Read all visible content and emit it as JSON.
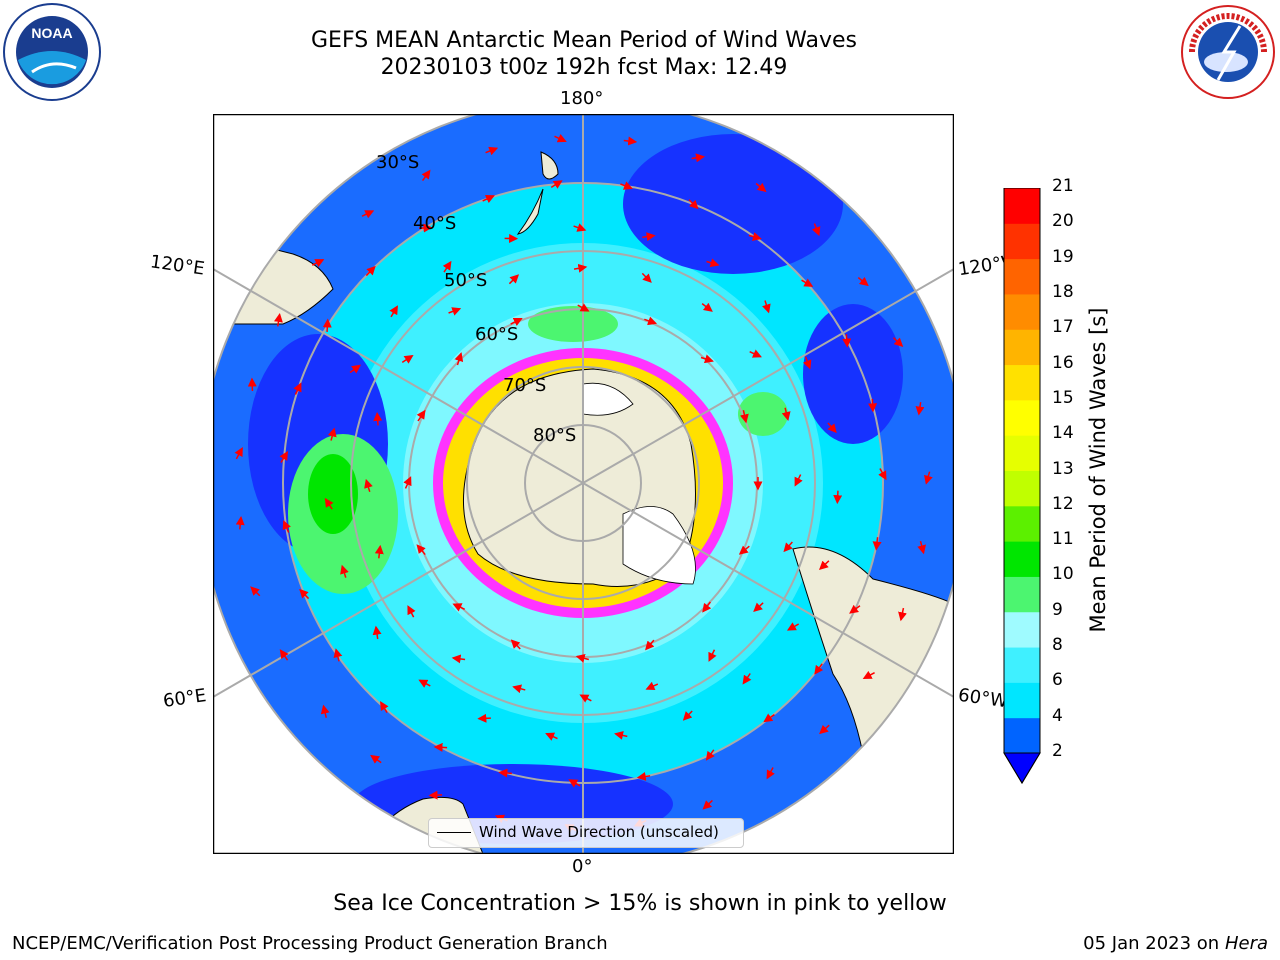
{
  "title_line1": "GEFS MEAN Antarctic Mean Period of Wind Waves",
  "title_line2": "20230103 t00z 192h fcst   Max: 12.49",
  "longitude_labels": {
    "top": "180°",
    "bottom": "0°",
    "upper_left": "120°E",
    "upper_right": "120°W",
    "lower_left": "60°E",
    "lower_right": "60°W"
  },
  "latitude_labels": [
    "30°S",
    "40°S",
    "50°S",
    "60°S",
    "70°S",
    "80°S"
  ],
  "legend": {
    "label": "Wind Wave Direction (unscaled)"
  },
  "colorbar": {
    "label": "Mean Period of Wind Waves [s]",
    "ticks": [
      "2",
      "4",
      "6",
      "8",
      "9",
      "10",
      "11",
      "12",
      "13",
      "14",
      "15",
      "16",
      "17",
      "18",
      "19",
      "20",
      "21"
    ],
    "colors": [
      "#0064ff",
      "#00e6ff",
      "#3ff0ff",
      "#9ffbff",
      "#4cf570",
      "#00e600",
      "#5cf000",
      "#c0ff00",
      "#e6ff00",
      "#ffff00",
      "#ffe100",
      "#ffb400",
      "#ff8c00",
      "#ff6400",
      "#ff3200",
      "#ff0000"
    ],
    "extend_color": "#0000ff"
  },
  "colors": {
    "land": "#eeecd8",
    "deep_blue": "#1632ff",
    "blue": "#1a6cff",
    "cyan": "#00e6ff",
    "light_cyan": "#7ff8ff",
    "green": "#4cf570",
    "ice_pink": "#ff33ff",
    "ice_yellow": "#ffe000",
    "arrow": "#ff0000",
    "graticule": "#aaaaaa"
  },
  "ice_note": "Sea Ice Concentration > 15% is shown in pink to yellow",
  "footer": {
    "left": "NCEP/EMC/Verification Post Processing Product Generation Branch",
    "right_date": "05 Jan 2023 on ",
    "right_host": "Hera"
  },
  "logos": {
    "left": "noaa-logo",
    "right": "nws-logo",
    "left_text": "NOAA",
    "nws_ring": "NATIONAL WEATHER SERVICE"
  }
}
